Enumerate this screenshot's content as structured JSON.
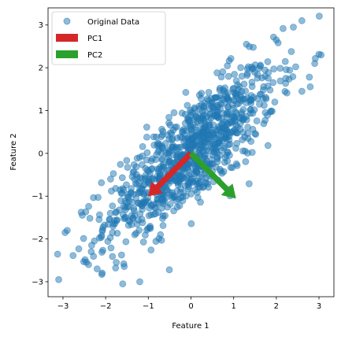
{
  "chart_data": {
    "type": "scatter",
    "xlabel": "Feature 1",
    "ylabel": "Feature 2",
    "xlim": [
      -3.35,
      3.35
    ],
    "ylim": [
      -3.35,
      3.4
    ],
    "xticks": [
      -3,
      -2,
      -1,
      0,
      1,
      2,
      3
    ],
    "yticks": [
      -3,
      -2,
      -1,
      0,
      1,
      2,
      3
    ],
    "grid": false,
    "legend_position": "upper-left",
    "series": [
      {
        "name": "Original Data",
        "kind": "points",
        "color": "#1f77b4",
        "point_count": 1000,
        "distribution": {
          "mean": [
            0,
            0
          ],
          "cov": [
            [
              1,
              0.8
            ],
            [
              0.8,
              1
            ]
          ]
        },
        "sample_points": [
          [
            -3.1,
            -2.95
          ],
          [
            -2.95,
            -1.85
          ],
          [
            -1.6,
            -3.05
          ],
          [
            -2.4,
            -2.6
          ],
          [
            -2.2,
            -2.7
          ],
          [
            2.6,
            3.1
          ],
          [
            3.05,
            2.3
          ],
          [
            2.4,
            2.95
          ],
          [
            2.0,
            2.65
          ],
          [
            2.6,
            1.45
          ],
          [
            -1.75,
            -2.55
          ],
          [
            1.3,
            2.55
          ],
          [
            -2.9,
            -1.8
          ],
          [
            -1.2,
            -3.0
          ],
          [
            2.9,
            2.1
          ]
        ]
      }
    ],
    "vectors": [
      {
        "name": "PC1",
        "color": "#d62728",
        "from": [
          0,
          0
        ],
        "to": [
          -1.0,
          -1.0
        ]
      },
      {
        "name": "PC2",
        "color": "#2ca02c",
        "from": [
          0,
          0
        ],
        "to": [
          1.05,
          -1.05
        ]
      }
    ]
  }
}
